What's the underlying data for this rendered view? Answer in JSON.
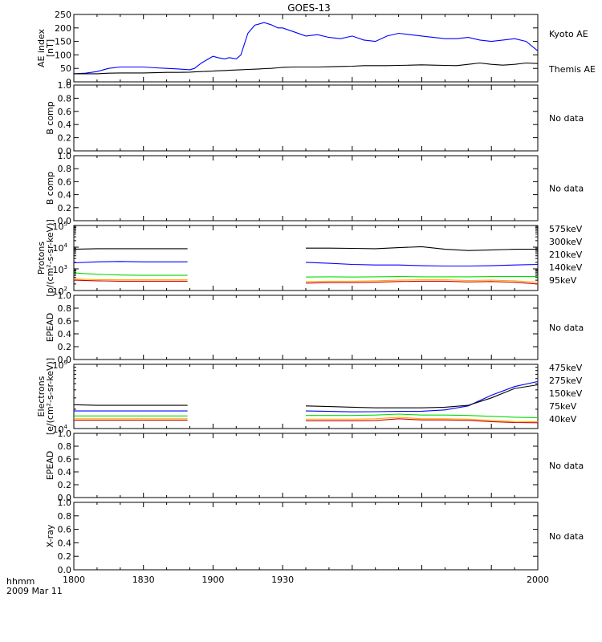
{
  "title": "GOES-13",
  "time_label": "hhmm",
  "date_label": "2009 Mar 11",
  "x_ticks": [
    "1800",
    "1830",
    "1900",
    "1930",
    "2000"
  ],
  "colors": {
    "kyoto": "#0000ff",
    "themis": "#000000",
    "red": "#cc0000",
    "orange": "#ffaa00",
    "green": "#00dd00",
    "blue": "#0000ff",
    "black": "#000000"
  },
  "no_data_text": "No data",
  "chart_data": [
    {
      "id": "ae",
      "type": "line",
      "ylabel": [
        "AE index",
        "[nT]"
      ],
      "ylim": [
        0,
        250
      ],
      "yticks": [
        "0",
        "50",
        "100",
        "150",
        "200",
        "250"
      ],
      "x": [
        0,
        5,
        10,
        15,
        20,
        25,
        30,
        35,
        40,
        45,
        50,
        52,
        55,
        57,
        60,
        62,
        65,
        67,
        70,
        72,
        75,
        78,
        80,
        82,
        85,
        88,
        90,
        95,
        100,
        105,
        110,
        115,
        120,
        125,
        130,
        135,
        140,
        145,
        150,
        155,
        160,
        165,
        170,
        175,
        180,
        185,
        190,
        195,
        200
      ],
      "series": [
        {
          "name": "Kyoto AE",
          "color": "kyoto",
          "values": [
            30,
            32,
            38,
            50,
            55,
            55,
            55,
            52,
            50,
            48,
            45,
            50,
            70,
            80,
            95,
            90,
            85,
            90,
            85,
            100,
            180,
            210,
            215,
            220,
            212,
            200,
            200,
            185,
            170,
            175,
            165,
            160,
            170,
            155,
            150,
            170,
            180,
            175,
            170,
            165,
            160,
            160,
            165,
            155,
            150,
            155,
            160,
            150,
            115
          ]
        },
        {
          "name": "Themis AE",
          "color": "themis",
          "values": [
            30,
            30,
            30,
            32,
            33,
            33,
            33,
            34,
            35,
            35,
            36,
            37,
            38,
            39,
            40,
            41,
            42,
            43,
            44,
            45,
            46,
            47,
            48,
            49,
            50,
            52,
            54,
            55,
            55,
            55,
            56,
            57,
            58,
            60,
            60,
            60,
            61,
            62,
            63,
            62,
            61,
            60,
            65,
            70,
            65,
            62,
            65,
            70,
            68
          ]
        }
      ]
    },
    {
      "id": "bcomp1",
      "type": "line",
      "ylabel": [
        "B comp"
      ],
      "ylim": [
        0,
        1
      ],
      "yticks": [
        "0.0",
        "0.2",
        "0.4",
        "0.6",
        "0.8",
        "1.0"
      ],
      "no_data": true
    },
    {
      "id": "bcomp2",
      "type": "line",
      "ylabel": [
        "B comp"
      ],
      "ylim": [
        0,
        1
      ],
      "yticks": [
        "0.0",
        "0.2",
        "0.4",
        "0.6",
        "0.8",
        "1.0"
      ],
      "no_data": true
    },
    {
      "id": "protons",
      "type": "line",
      "log": true,
      "ylabel": [
        "Protons",
        "[p/(cm²-s-sr-keV)]"
      ],
      "ylim": [
        100,
        100000
      ],
      "yticks_log": [
        {
          "base": "10",
          "exp": "2"
        },
        {
          "base": "10",
          "exp": "3"
        },
        {
          "base": "10",
          "exp": "4"
        },
        {
          "base": "10",
          "exp": "5"
        }
      ],
      "gaps": [
        [
          49,
          100
        ]
      ],
      "x": [
        0,
        10,
        20,
        30,
        40,
        49,
        100,
        110,
        120,
        130,
        140,
        150,
        160,
        170,
        180,
        190,
        200
      ],
      "series": [
        {
          "name": "575keV",
          "color": "red",
          "values": [
            300,
            280,
            270,
            270,
            270,
            270,
            220,
            230,
            230,
            240,
            260,
            270,
            270,
            250,
            260,
            240,
            200
          ]
        },
        {
          "name": "300keV",
          "color": "orange",
          "values": [
            340,
            320,
            310,
            310,
            310,
            310,
            260,
            270,
            270,
            280,
            300,
            310,
            310,
            290,
            300,
            280,
            240
          ]
        },
        {
          "name": "210keV",
          "color": "green",
          "values": [
            650,
            560,
            520,
            500,
            500,
            500,
            420,
            430,
            420,
            430,
            440,
            430,
            430,
            430,
            440,
            440,
            440
          ]
        },
        {
          "name": "140keV",
          "color": "blue",
          "values": [
            1900,
            2100,
            2200,
            2100,
            2100,
            2100,
            2000,
            1800,
            1600,
            1500,
            1500,
            1400,
            1350,
            1350,
            1400,
            1500,
            1600
          ]
        },
        {
          "name": "95keV",
          "color": "black",
          "values": [
            8000,
            8500,
            8500,
            8500,
            8500,
            8500,
            9000,
            9000,
            8800,
            8500,
            9500,
            10500,
            8000,
            7000,
            7500,
            8000,
            8000
          ]
        }
      ]
    },
    {
      "id": "epead1",
      "type": "line",
      "ylabel": [
        "EPEAD"
      ],
      "ylim": [
        0,
        1
      ],
      "yticks": [
        "0.0",
        "0.2",
        "0.4",
        "0.6",
        "0.8",
        "1.0"
      ],
      "no_data": true
    },
    {
      "id": "electrons",
      "type": "line",
      "log": true,
      "ylabel": [
        "Electrons",
        "[e/(cm²-s-sr-keV)]"
      ],
      "ylim": [
        10000,
        100000
      ],
      "yticks_log": [
        {
          "base": "10",
          "exp": "4"
        },
        {
          "base": "10",
          "exp": "5"
        }
      ],
      "gaps": [
        [
          49,
          100
        ]
      ],
      "x": [
        0,
        10,
        20,
        30,
        40,
        49,
        100,
        110,
        120,
        130,
        140,
        150,
        160,
        170,
        180,
        190,
        200
      ],
      "series": [
        {
          "name": "475keV",
          "color": "red",
          "values": [
            13500,
            13500,
            13500,
            13500,
            13500,
            13500,
            13200,
            13200,
            13200,
            13300,
            14200,
            13600,
            13600,
            13400,
            12800,
            12400,
            12300
          ]
        },
        {
          "name": "275keV",
          "color": "orange",
          "values": [
            14200,
            14200,
            14200,
            14200,
            14200,
            14200,
            14000,
            14000,
            14000,
            14200,
            15000,
            14200,
            14200,
            14000,
            13400,
            12900,
            12800
          ]
        },
        {
          "name": "150keV",
          "color": "green",
          "values": [
            15700,
            15700,
            15700,
            15700,
            15700,
            15700,
            16000,
            16000,
            16000,
            16200,
            16800,
            16200,
            16200,
            16000,
            15500,
            15000,
            14800
          ]
        },
        {
          "name": "75keV",
          "color": "blue",
          "values": [
            18800,
            18800,
            18800,
            18800,
            18800,
            18800,
            18800,
            18500,
            18200,
            18300,
            18500,
            18600,
            19500,
            22500,
            33000,
            45000,
            54000
          ]
        },
        {
          "name": "40keV",
          "color": "black",
          "values": [
            23500,
            23000,
            23000,
            23000,
            23000,
            23000,
            22500,
            22000,
            21500,
            21000,
            21000,
            21000,
            21500,
            23000,
            30000,
            42000,
            48000
          ]
        }
      ]
    },
    {
      "id": "epead2",
      "type": "line",
      "ylabel": [
        "EPEAD"
      ],
      "ylim": [
        0,
        1
      ],
      "yticks": [
        "0.0",
        "0.2",
        "0.4",
        "0.6",
        "0.8",
        "1.0"
      ],
      "no_data": true
    },
    {
      "id": "xray",
      "type": "line",
      "ylabel": [
        "X-ray"
      ],
      "ylim": [
        0,
        1
      ],
      "yticks": [
        "0.0",
        "0.2",
        "0.4",
        "0.6",
        "0.8",
        "1.0"
      ],
      "no_data": true
    }
  ]
}
